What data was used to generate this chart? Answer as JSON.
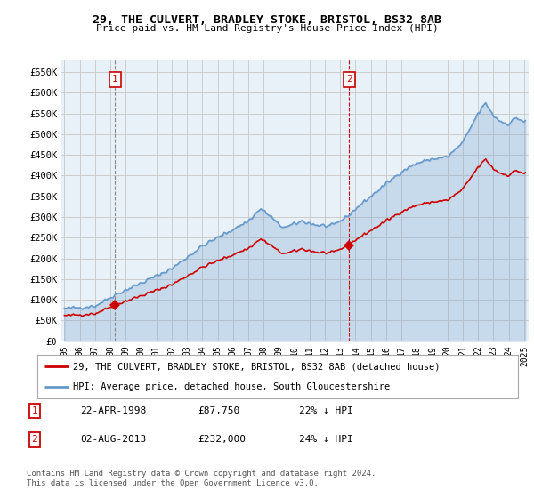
{
  "title": "29, THE CULVERT, BRADLEY STOKE, BRISTOL, BS32 8AB",
  "subtitle": "Price paid vs. HM Land Registry's House Price Index (HPI)",
  "legend_line1": "29, THE CULVERT, BRADLEY STOKE, BRISTOL, BS32 8AB (detached house)",
  "legend_line2": "HPI: Average price, detached house, South Gloucestershire",
  "footnote": "Contains HM Land Registry data © Crown copyright and database right 2024.\nThis data is licensed under the Open Government Licence v3.0.",
  "table_rows": [
    {
      "num": "1",
      "date": "22-APR-1998",
      "price": "£87,750",
      "hpi": "22% ↓ HPI"
    },
    {
      "num": "2",
      "date": "02-AUG-2013",
      "price": "£232,000",
      "hpi": "24% ↓ HPI"
    }
  ],
  "red_color": "#cc0000",
  "blue_color": "#6699cc",
  "blue_fill": "#ddeeff",
  "grid_color": "#cccccc",
  "bg_color": "#ffffff",
  "plot_bg_color": "#e8f0f8",
  "ylim": [
    0,
    680000
  ],
  "yticks": [
    0,
    50000,
    100000,
    150000,
    200000,
    250000,
    300000,
    350000,
    400000,
    450000,
    500000,
    550000,
    600000,
    650000
  ],
  "ytick_labels": [
    "£0",
    "£50K",
    "£100K",
    "£150K",
    "£200K",
    "£250K",
    "£300K",
    "£350K",
    "£400K",
    "£450K",
    "£500K",
    "£550K",
    "£600K",
    "£650K"
  ],
  "marker1_x": 1998.3,
  "marker1_y": 87750,
  "marker2_x": 2013.58,
  "marker2_y": 232000,
  "vline1_x": 1998.3,
  "vline2_x": 2013.58,
  "xlim_left": 1994.8,
  "xlim_right": 2025.3,
  "xticks": [
    1995,
    1996,
    1997,
    1998,
    1999,
    2000,
    2001,
    2002,
    2003,
    2004,
    2005,
    2006,
    2007,
    2008,
    2009,
    2010,
    2011,
    2012,
    2013,
    2014,
    2015,
    2016,
    2017,
    2018,
    2019,
    2020,
    2021,
    2022,
    2023,
    2024,
    2025
  ]
}
